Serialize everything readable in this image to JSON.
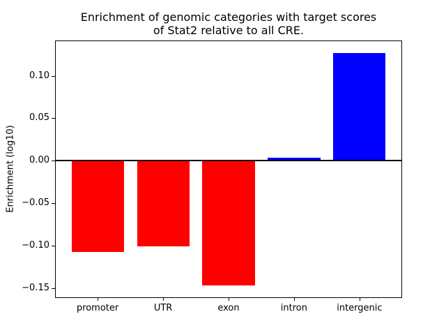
{
  "chart_data": {
    "type": "bar",
    "title": "Enrichment of genomic categories with target scores of Stat2 relative to all CRE.",
    "title_lines": [
      "Enrichment of genomic categories with target scores",
      "of Stat2 relative to all CRE."
    ],
    "xlabel": "",
    "ylabel": "Enrichment (log10)",
    "categories": [
      "promoter",
      "UTR",
      "exon",
      "intron",
      "intergenic"
    ],
    "values": [
      -0.107,
      -0.101,
      -0.147,
      0.004,
      0.127
    ],
    "positive_color": "#0000ff",
    "negative_color": "#ff0000",
    "axis_color": "#000000",
    "background_color": "#ffffff",
    "ylim": [
      -0.1607,
      0.1407
    ],
    "xlim": [
      -0.64,
      4.64
    ],
    "bar_width": 0.8,
    "yticks": [
      {
        "value": 0.1,
        "label": "0.10"
      },
      {
        "value": 0.05,
        "label": "0.05"
      },
      {
        "value": 0.0,
        "label": "0.00"
      },
      {
        "value": -0.05,
        "label": "−0.05"
      },
      {
        "value": -0.1,
        "label": "−0.10"
      },
      {
        "value": -0.15,
        "label": "−0.15"
      }
    ],
    "grid": false,
    "legend": "none",
    "zero_line": true
  }
}
